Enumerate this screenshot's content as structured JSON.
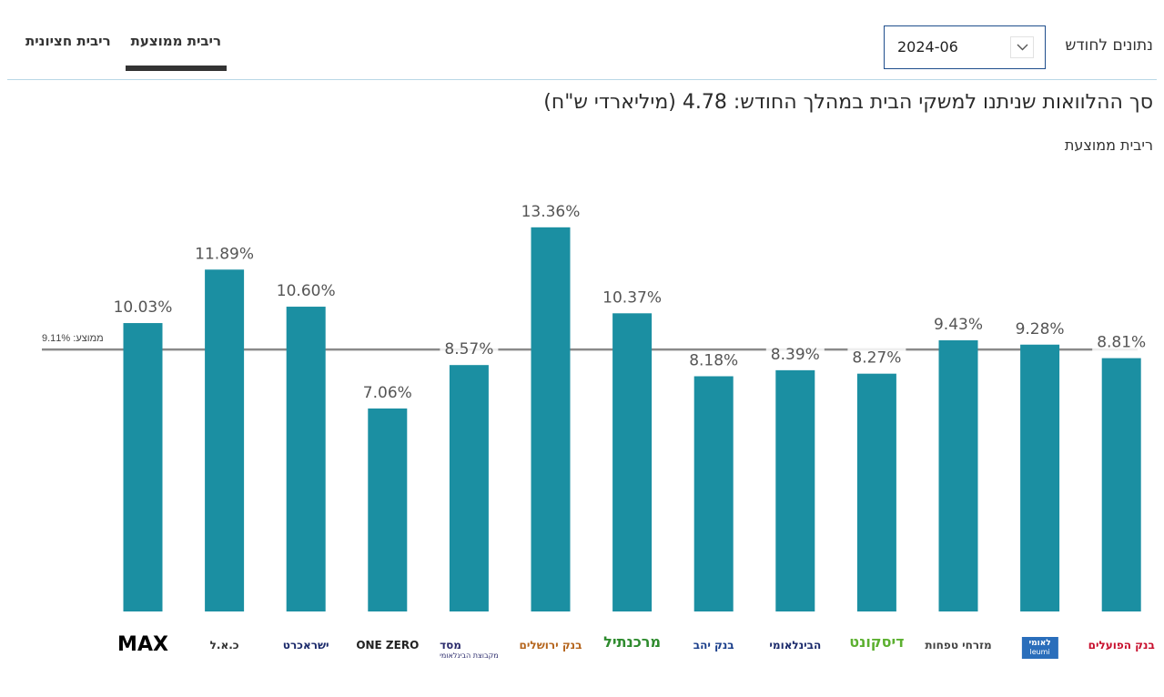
{
  "tabs": [
    {
      "label": "ריבית ממוצעת",
      "active": true
    },
    {
      "label": "ריבית חציונית",
      "active": false
    }
  ],
  "month_filter": {
    "label": "נתונים לחודש",
    "value": "2024-06"
  },
  "headline": "סך ההלוואות שניתנו למשקי הבית במהלך החודש: 4.78 (מיליארדי ש\"ח)",
  "subtitle": "ריבית ממוצעת",
  "colors": {
    "bar": "#1b8fa2",
    "average_line": "#8a8a8a",
    "label": "#555555"
  },
  "chart_data": {
    "type": "bar",
    "categories": [
      "MAX",
      "כ.א.ל",
      "ישראכרט",
      "ONE ZERO",
      "מסד",
      "בנק ירושלים",
      "מרכנתיל",
      "בנק יהב",
      "הבינלאומי",
      "דיסקונט",
      "מזרחי טפחות",
      "לאומי",
      "בנק הפועלים"
    ],
    "values": [
      10.03,
      11.89,
      10.6,
      7.06,
      8.57,
      13.36,
      10.37,
      8.18,
      8.39,
      8.27,
      9.43,
      9.28,
      8.81
    ],
    "value_labels": [
      "10.03%",
      "11.89%",
      "10.60%",
      "7.06%",
      "8.57%",
      "13.36%",
      "10.37%",
      "8.18%",
      "8.39%",
      "8.27%",
      "9.43%",
      "9.28%",
      "8.81%"
    ],
    "average": {
      "value": 9.11,
      "label": "ממוצע: 9.11%"
    },
    "ylim": [
      0,
      13.36
    ],
    "grid": false
  },
  "logos": [
    {
      "text": "MAX",
      "sub": "",
      "color": "#000000",
      "icon": "max-logo"
    },
    {
      "text": "כ.א.ל",
      "sub": "",
      "color": "#333333",
      "icon": "cal-logo"
    },
    {
      "text": "ישראכרט",
      "sub": "",
      "color": "#1b2a6b",
      "icon": "isracard-logo"
    },
    {
      "text": "ONE ZERO",
      "sub": "",
      "color": "#222222",
      "icon": "one-zero-logo"
    },
    {
      "text": "מסד",
      "sub": "מקבוצת הבינלאומי",
      "color": "#2a2a6b",
      "icon": "massad-logo"
    },
    {
      "text": "בנק ירושלים",
      "sub": "",
      "color": "#b5651d",
      "icon": "bank-jerusalem-logo"
    },
    {
      "text": "מרכנתיל",
      "sub": "",
      "color": "#2e8b2e",
      "icon": "mercantile-logo"
    },
    {
      "text": "בנק יהב",
      "sub": "",
      "color": "#1b3f8b",
      "icon": "yahav-logo"
    },
    {
      "text": "הבינלאומי",
      "sub": "",
      "color": "#1b2a6b",
      "icon": "fibi-logo"
    },
    {
      "text": "דיסקונט",
      "sub": "",
      "color": "#5cb030",
      "icon": "discount-logo"
    },
    {
      "text": "מזרחי טפחות",
      "sub": "",
      "color": "#444444",
      "icon": "mizrahi-logo"
    },
    {
      "text": "לאומי",
      "sub": "leumi",
      "color": "#2a6ebb",
      "icon": "leumi-logo"
    },
    {
      "text": "בנק הפועלים",
      "sub": "",
      "color": "#c8102e",
      "icon": "hapoalim-logo"
    }
  ]
}
